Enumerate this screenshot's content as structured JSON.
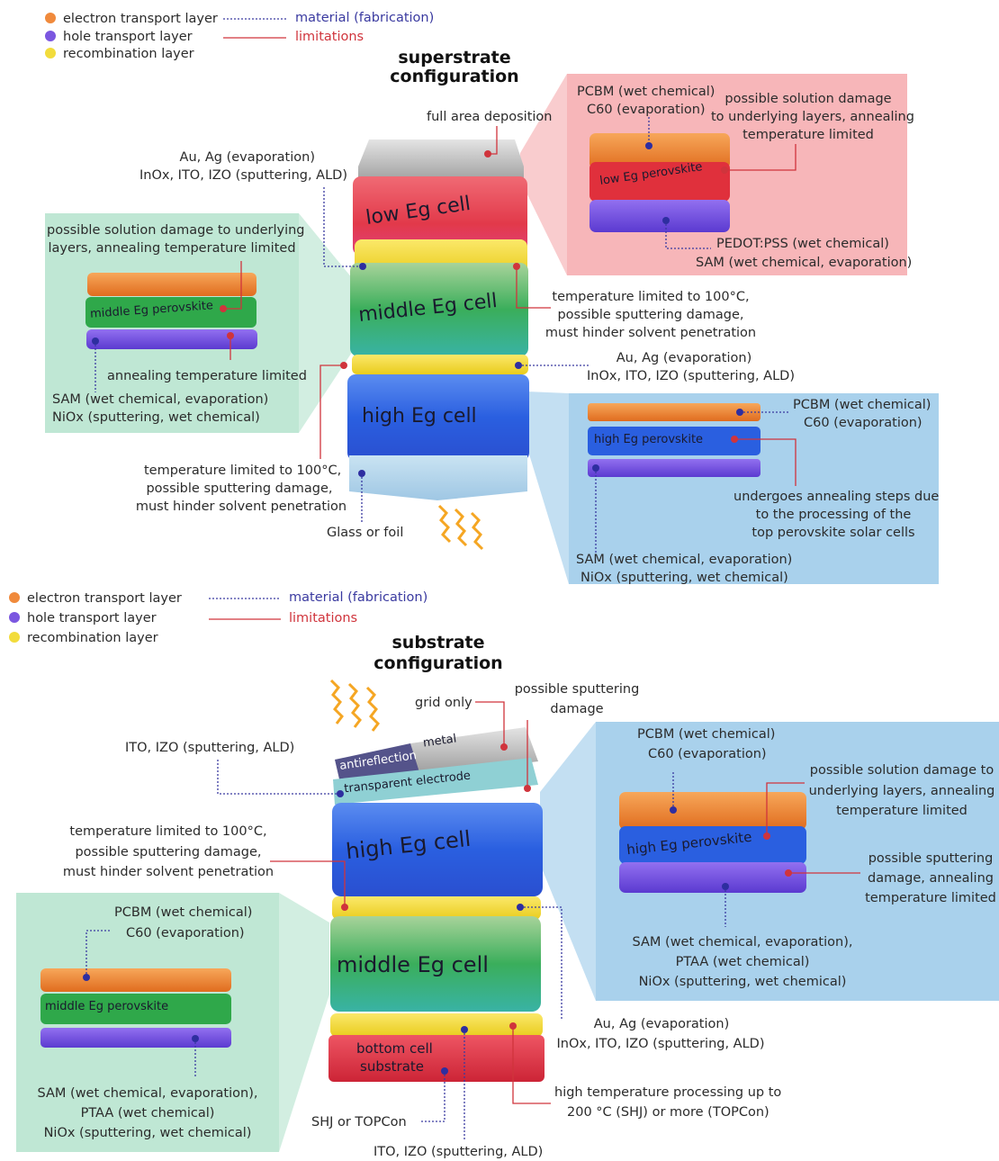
{
  "colors": {
    "etl": "#f08a3c",
    "htl": "#7b57e0",
    "recombination": "#f2dc3c",
    "material_line": "#3a3aa0",
    "limitation_line": "#d0343c",
    "green_panel": "#bfe7d4",
    "pink_panel": "#f7b6b9",
    "blue_panel": "#a9d1ec"
  },
  "legend": {
    "etl": "electron transport layer",
    "htl": "hole transport layer",
    "recombination": "recombination layer",
    "material": "material (fabrication)",
    "limitations": "limitations"
  },
  "superstrate": {
    "title_line1": "superstrate",
    "title_line2": "configuration",
    "full_area": "full area deposition",
    "top_electrode_line1": "Au, Ag (evaporation)",
    "top_electrode_line2": "InOx, ITO, IZO (sputtering, ALD)",
    "low_cell": "low Eg cell",
    "middle_cell": "middle Eg cell",
    "high_cell": "high Eg cell",
    "glass": "Glass or foil",
    "rec1_lim_line1": "temperature limited to 100°C,",
    "rec1_lim_line2": "possible sputtering damage,",
    "rec1_lim_line3": "must hinder solvent penetration",
    "rec2_mat_line1": "Au, Ag (evaporation)",
    "rec2_mat_line2": "InOx, ITO, IZO (sputtering, ALD)",
    "rec2_lim_line1": "temperature limited to 100°C,",
    "rec2_lim_line2": "possible sputtering damage,",
    "rec2_lim_line3": "must hinder solvent penetration",
    "pink": {
      "etl_line1": "PCBM (wet chemical)",
      "etl_line2": "C60 (evaporation)",
      "lim_line1": "possible solution damage",
      "lim_line2": "to underlying layers, annealing",
      "lim_line3": "temperature limited",
      "perovskite": "low Eg perovskite",
      "htl_line1": "PEDOT:PSS (wet chemical)",
      "htl_line2": "SAM (wet chemical, evaporation)"
    },
    "green": {
      "lim_line1": "possible solution damage to underlying",
      "lim_line2": "layers, annealing temperature limited",
      "perovskite": "middle Eg perovskite",
      "htl_lim": "annealing temperature limited",
      "htl_line1": "SAM (wet chemical, evaporation)",
      "htl_line2": "NiOx (sputtering, wet chemical)"
    },
    "blue": {
      "etl_line1": "PCBM (wet chemical)",
      "etl_line2": "C60 (evaporation)",
      "perovskite": "high Eg perovskite",
      "lim_line1": "undergoes annealing steps due",
      "lim_line2": "to the processing of the",
      "lim_line3": "top perovskite solar cells",
      "htl_line1": "SAM (wet chemical, evaporation)",
      "htl_line2": "NiOx (sputtering, wet chemical)"
    }
  },
  "substrate": {
    "title_line1": "substrate",
    "title_line2": "configuration",
    "grid_only": "grid only",
    "sputter_line1": "possible sputtering",
    "sputter_line2": "damage",
    "antireflection": "antireflection",
    "metal": "metal",
    "transparent_electrode": "transparent electrode",
    "te_material": "ITO, IZO (sputtering, ALD)",
    "high_cell": "high Eg cell",
    "middle_cell": "middle Eg cell",
    "bottom_line1": "bottom cell",
    "bottom_line2": "substrate",
    "rec1_lim_line1": "temperature limited to 100°C,",
    "rec1_lim_line2": "possible sputtering damage,",
    "rec1_lim_line3": "must hinder solvent penetration",
    "rec_mat_line1": "Au, Ag (evaporation)",
    "rec_mat_line2": "InOx, ITO, IZO (sputtering, ALD)",
    "bottom_lim_line1": "high temperature processing up to",
    "bottom_lim_line2": "200 °C (SHJ) or more (TOPCon)",
    "shj": "SHJ or TOPCon",
    "ito_bottom": "ITO, IZO (sputtering, ALD)",
    "blue": {
      "etl_line1": "PCBM (wet chemical)",
      "etl_line2": "C60 (evaporation)",
      "lim_line1": "possible solution damage to",
      "lim_line2": "underlying layers, annealing",
      "lim_line3": "temperature limited",
      "perovskite": "high Eg perovskite",
      "htl_lim_line1": "possible sputtering",
      "htl_lim_line2": "damage, annealing",
      "htl_lim_line3": "temperature limited",
      "htl_line1": "SAM (wet chemical, evaporation),",
      "htl_line2": "PTAA (wet chemical)",
      "htl_line3": "NiOx (sputtering, wet chemical)"
    },
    "green": {
      "etl_line1": "PCBM (wet chemical)",
      "etl_line2": "C60 (evaporation)",
      "perovskite": "middle Eg perovskite",
      "htl_line1": "SAM (wet chemical, evaporation),",
      "htl_line2": "PTAA (wet chemical)",
      "htl_line3": "NiOx (sputtering, wet chemical)"
    }
  }
}
